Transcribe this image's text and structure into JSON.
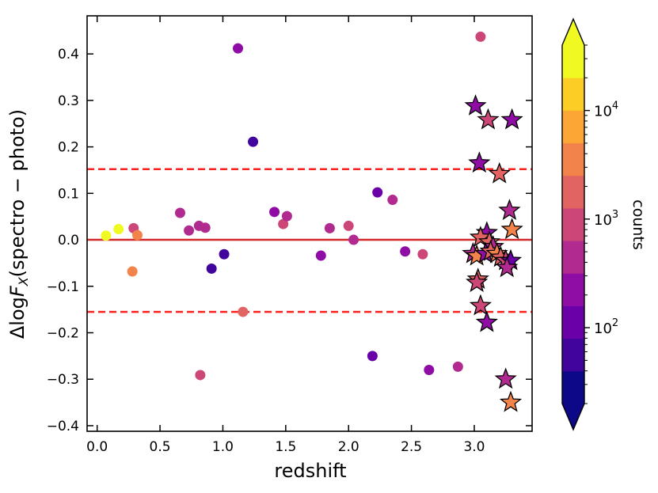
{
  "chart_data": {
    "type": "scatter",
    "title": "",
    "xlabel": "redshift",
    "ylabel_prefix": "Δlog",
    "ylabel_var": "F",
    "ylabel_sub": "X",
    "ylabel_suffix": "(spectro − photo)",
    "xlim": [
      -0.08,
      3.46
    ],
    "ylim": [
      -0.412,
      0.482
    ],
    "x_ticks": [
      0.0,
      0.5,
      1.0,
      1.5,
      2.0,
      2.5,
      3.0
    ],
    "x_tick_labels": [
      "0.0",
      "0.5",
      "1.0",
      "1.5",
      "2.0",
      "2.5",
      "3.0"
    ],
    "y_ticks": [
      0.4,
      0.3,
      0.2,
      0.1,
      0.0,
      -0.1,
      -0.2,
      -0.3,
      -0.4
    ],
    "y_tick_labels": [
      "0.4",
      "0.3",
      "0.2",
      "0.1",
      "0.0",
      "−0.1",
      "−0.2",
      "−0.3",
      "−0.4"
    ],
    "reference_lines": [
      {
        "y": 0.0,
        "style": "solid",
        "color": "#d62728"
      },
      {
        "y": 0.152,
        "style": "dashed",
        "color": "#ff2020"
      },
      {
        "y": -0.155,
        "style": "dashed",
        "color": "#ff2020"
      }
    ],
    "colorbar": {
      "label": "counts",
      "scale": "log",
      "colormap": "plasma",
      "range": [
        20,
        40000
      ],
      "tick_labels": [
        "10",
        "10",
        "10"
      ],
      "tick_exponents": [
        "2",
        "3",
        "4"
      ],
      "tick_values": [
        100,
        1000,
        10000
      ],
      "bin_colors": [
        "#0d0887",
        "#41049d",
        "#6a00a8",
        "#8f0da4",
        "#b12a90",
        "#cc4778",
        "#e16462",
        "#f2844b",
        "#fca636",
        "#fcce25",
        "#f0f921"
      ]
    },
    "circles": [
      {
        "x": 0.07,
        "y": 0.009,
        "counts": 38000
      },
      {
        "x": 0.17,
        "y": 0.023,
        "counts": 30000
      },
      {
        "x": 0.29,
        "y": 0.025,
        "counts": 1200
      },
      {
        "x": 0.32,
        "y": 0.01,
        "counts": 4500
      },
      {
        "x": 0.28,
        "y": -0.068,
        "counts": 3500
      },
      {
        "x": 0.66,
        "y": 0.058,
        "counts": 500
      },
      {
        "x": 0.73,
        "y": 0.02,
        "counts": 350
      },
      {
        "x": 0.81,
        "y": 0.03,
        "counts": 400
      },
      {
        "x": 0.86,
        "y": 0.026,
        "counts": 600
      },
      {
        "x": 0.82,
        "y": -0.291,
        "counts": 700
      },
      {
        "x": 0.91,
        "y": -0.062,
        "counts": 40
      },
      {
        "x": 1.01,
        "y": -0.031,
        "counts": 60
      },
      {
        "x": 1.12,
        "y": 0.412,
        "counts": 180
      },
      {
        "x": 1.16,
        "y": -0.155,
        "counts": 2000
      },
      {
        "x": 1.24,
        "y": 0.211,
        "counts": 40
      },
      {
        "x": 1.41,
        "y": 0.06,
        "counts": 300
      },
      {
        "x": 1.48,
        "y": 0.034,
        "counts": 700
      },
      {
        "x": 1.51,
        "y": 0.051,
        "counts": 500
      },
      {
        "x": 1.78,
        "y": -0.034,
        "counts": 250
      },
      {
        "x": 1.85,
        "y": 0.025,
        "counts": 400
      },
      {
        "x": 2.0,
        "y": 0.03,
        "counts": 800
      },
      {
        "x": 2.04,
        "y": 0.0,
        "counts": 400
      },
      {
        "x": 2.19,
        "y": -0.25,
        "counts": 150
      },
      {
        "x": 2.23,
        "y": 0.102,
        "counts": 100
      },
      {
        "x": 2.35,
        "y": 0.086,
        "counts": 400
      },
      {
        "x": 2.45,
        "y": -0.025,
        "counts": 300
      },
      {
        "x": 2.59,
        "y": -0.031,
        "counts": 800
      },
      {
        "x": 2.64,
        "y": -0.28,
        "counts": 200
      },
      {
        "x": 2.87,
        "y": -0.273,
        "counts": 500
      },
      {
        "x": 3.05,
        "y": 0.437,
        "counts": 700
      }
    ],
    "stars": [
      {
        "x": 3.01,
        "y": 0.288,
        "counts": 180
      },
      {
        "x": 3.11,
        "y": 0.258,
        "counts": 700
      },
      {
        "x": 3.3,
        "y": 0.258,
        "counts": 200
      },
      {
        "x": 3.04,
        "y": 0.165,
        "counts": 200
      },
      {
        "x": 3.2,
        "y": 0.142,
        "counts": 2500
      },
      {
        "x": 3.28,
        "y": 0.063,
        "counts": 500
      },
      {
        "x": 3.3,
        "y": 0.022,
        "counts": 4000
      },
      {
        "x": 3.1,
        "y": 0.015,
        "counts": 300
      },
      {
        "x": 3.05,
        "y": 0.005,
        "counts": 1500
      },
      {
        "x": 3.12,
        "y": -0.005,
        "counts": 2500
      },
      {
        "x": 3.15,
        "y": -0.015,
        "counts": 600
      },
      {
        "x": 2.99,
        "y": -0.03,
        "counts": 350
      },
      {
        "x": 3.02,
        "y": -0.035,
        "counts": 3000
      },
      {
        "x": 3.09,
        "y": -0.03,
        "counts": 250
      },
      {
        "x": 3.13,
        "y": -0.025,
        "counts": 1800
      },
      {
        "x": 3.18,
        "y": -0.03,
        "counts": 3500
      },
      {
        "x": 3.21,
        "y": -0.038,
        "counts": 2000
      },
      {
        "x": 3.25,
        "y": -0.045,
        "counts": 800
      },
      {
        "x": 3.29,
        "y": -0.045,
        "counts": 150
      },
      {
        "x": 3.26,
        "y": -0.06,
        "counts": 500
      },
      {
        "x": 3.03,
        "y": -0.085,
        "counts": 2200
      },
      {
        "x": 3.02,
        "y": -0.092,
        "counts": 700
      },
      {
        "x": 3.05,
        "y": -0.142,
        "counts": 900
      },
      {
        "x": 3.1,
        "y": -0.178,
        "counts": 300
      },
      {
        "x": 3.25,
        "y": -0.3,
        "counts": 350
      },
      {
        "x": 3.29,
        "y": -0.35,
        "counts": 3000
      }
    ]
  }
}
